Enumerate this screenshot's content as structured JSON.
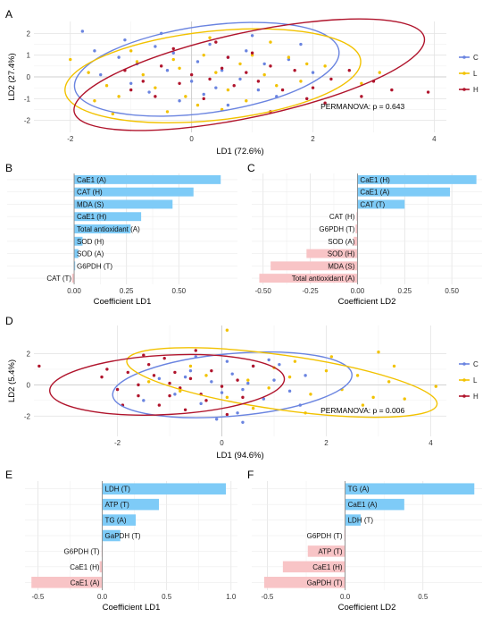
{
  "colors": {
    "C": "#6a84e0",
    "L": "#f2c200",
    "H": "#b0142c",
    "pos": "#7ecbf7",
    "neg": "#f8c4c6"
  },
  "legend": [
    "C",
    "L",
    "H"
  ],
  "chart_data": [
    {
      "id": "A",
      "type": "scatter",
      "xlabel": "LD1 (72.6%)",
      "ylabel": "LD2 (27.4%)",
      "xlim": [
        -2.6,
        4.2
      ],
      "ylim": [
        -2.55,
        2.55
      ],
      "xticks": [
        -2,
        0,
        2,
        4
      ],
      "yticks": [
        -2,
        -1,
        0,
        1,
        2
      ],
      "annotation": "PERMANOVA: p = 0.643",
      "ellipses": [
        {
          "group": "C",
          "cx": 0.25,
          "cy": 0.35,
          "rx": 2.2,
          "ry": 2.0,
          "angle": -8
        },
        {
          "group": "L",
          "cx": 0.35,
          "cy": 0.05,
          "rx": 2.45,
          "ry": 2.05,
          "angle": -6
        },
        {
          "group": "H",
          "cx": 0.95,
          "cy": 0.1,
          "rx": 2.95,
          "ry": 1.95,
          "angle": -12
        }
      ],
      "series": [
        {
          "name": "C",
          "points": [
            [
              -1.8,
              2.1
            ],
            [
              -1.6,
              1.2
            ],
            [
              -1.2,
              0.9
            ],
            [
              -0.9,
              0.6
            ],
            [
              -0.6,
              1.4
            ],
            [
              -0.3,
              1.1
            ],
            [
              0.1,
              0.7
            ],
            [
              0.3,
              1.5
            ],
            [
              0.6,
              0.9
            ],
            [
              0.9,
              1.2
            ],
            [
              1.2,
              0.6
            ],
            [
              1.6,
              0.8
            ],
            [
              2.0,
              0.2
            ],
            [
              -1.5,
              0.1
            ],
            [
              -1.0,
              -0.3
            ],
            [
              -0.7,
              -0.7
            ],
            [
              -0.4,
              0.3
            ],
            [
              0.0,
              -0.2
            ],
            [
              0.4,
              -0.5
            ],
            [
              0.8,
              -0.1
            ],
            [
              1.1,
              -0.6
            ],
            [
              1.4,
              -0.9
            ],
            [
              -0.2,
              -1.1
            ],
            [
              0.2,
              -0.8
            ],
            [
              0.6,
              -1.3
            ],
            [
              -1.1,
              1.7
            ],
            [
              1.0,
              1.9
            ],
            [
              -0.5,
              2.0
            ],
            [
              0.5,
              0.3
            ],
            [
              1.8,
              1.5
            ]
          ]
        },
        {
          "name": "L",
          "points": [
            [
              -2.0,
              0.8
            ],
            [
              -1.7,
              0.2
            ],
            [
              -1.4,
              -0.4
            ],
            [
              -1.6,
              -1.1
            ],
            [
              -1.0,
              1.2
            ],
            [
              -0.8,
              0.1
            ],
            [
              -0.6,
              -0.5
            ],
            [
              -0.3,
              0.8
            ],
            [
              -0.1,
              -0.9
            ],
            [
              0.2,
              1.0
            ],
            [
              0.4,
              0.2
            ],
            [
              0.6,
              -0.6
            ],
            [
              0.8,
              0.6
            ],
            [
              1.0,
              1.0
            ],
            [
              1.2,
              0.1
            ],
            [
              1.4,
              -0.4
            ],
            [
              1.6,
              0.9
            ],
            [
              1.8,
              -0.2
            ],
            [
              2.2,
              0.5
            ],
            [
              2.8,
              -0.3
            ],
            [
              -1.2,
              -0.9
            ],
            [
              -0.4,
              -1.6
            ],
            [
              0.1,
              -1.3
            ],
            [
              0.5,
              -1.5
            ],
            [
              0.9,
              -1.1
            ],
            [
              -0.9,
              0.7
            ],
            [
              0.3,
              1.8
            ],
            [
              1.3,
              1.6
            ],
            [
              -1.3,
              -1.7
            ],
            [
              1.9,
              0.6
            ],
            [
              3.1,
              0.2
            ],
            [
              -0.2,
              0.4
            ]
          ]
        },
        {
          "name": "H",
          "points": [
            [
              -1.1,
              0.3
            ],
            [
              -0.8,
              -0.2
            ],
            [
              -0.5,
              0.5
            ],
            [
              -0.2,
              -0.3
            ],
            [
              0.0,
              0.1
            ],
            [
              0.3,
              -0.1
            ],
            [
              0.5,
              0.4
            ],
            [
              0.7,
              -0.4
            ],
            [
              0.9,
              0.2
            ],
            [
              1.1,
              -0.2
            ],
            [
              1.3,
              0.5
            ],
            [
              1.5,
              -0.6
            ],
            [
              1.7,
              0.3
            ],
            [
              2.0,
              -0.5
            ],
            [
              2.3,
              -0.1
            ],
            [
              2.6,
              0.3
            ],
            [
              3.0,
              -0.2
            ],
            [
              3.3,
              -0.6
            ],
            [
              3.9,
              -0.7
            ],
            [
              -0.6,
              -0.9
            ],
            [
              0.2,
              -1.0
            ],
            [
              0.6,
              0.9
            ],
            [
              1.0,
              1.1
            ],
            [
              1.9,
              -1.0
            ],
            [
              -0.3,
              1.3
            ],
            [
              2.2,
              -1.2
            ],
            [
              1.3,
              -1.6
            ],
            [
              -1.0,
              -0.6
            ],
            [
              0.4,
              1.6
            ],
            [
              2.8,
              -0.9
            ]
          ]
        }
      ]
    },
    {
      "id": "B",
      "type": "bar",
      "orientation": "horizontal",
      "xlabel": "Coefficient LD1",
      "xlim": [
        -0.32,
        0.78
      ],
      "xticks": [
        0,
        0.25,
        0.5
      ],
      "xtick_labels": [
        "0.00",
        "0.25",
        "0.50"
      ],
      "categories": [
        "CaE1 (A)",
        "CAT (H)",
        "MDA (S)",
        "CaE1 (H)",
        "Total antioxidant (A)",
        "SOD (H)",
        "SOD (A)",
        "G6PDH (T)",
        "CAT (T)"
      ],
      "values": [
        0.7,
        0.57,
        0.47,
        0.32,
        0.27,
        0.04,
        0.02,
        0.005,
        -0.01
      ]
    },
    {
      "id": "C",
      "type": "bar",
      "orientation": "horizontal",
      "xlabel": "Coefficient LD2",
      "xlim": [
        -0.56,
        0.66
      ],
      "xticks": [
        -0.5,
        -0.25,
        0,
        0.25,
        0.5
      ],
      "xtick_labels": [
        "-0.50",
        "-0.25",
        "0.00",
        "0.25",
        "0.50"
      ],
      "categories": [
        "CaE1 (H)",
        "CaE1 (A)",
        "CAT (T)",
        "CAT (H)",
        "G6PDH (T)",
        "SOD (A)",
        "SOD (H)",
        "MDA (S)",
        "Total antioxidant (A)"
      ],
      "values": [
        0.63,
        0.49,
        0.25,
        -0.005,
        -0.01,
        -0.02,
        -0.27,
        -0.46,
        -0.52
      ]
    },
    {
      "id": "D",
      "type": "scatter",
      "xlabel": "LD1 (94.6%)",
      "ylabel": "LD2 (5.4%)",
      "xlim": [
        -3.6,
        4.3
      ],
      "ylim": [
        -3.3,
        3.8
      ],
      "xticks": [
        -2,
        0,
        2,
        4
      ],
      "yticks": [
        -2,
        0,
        2
      ],
      "annotation": "PERMANOVA: p = 0.006",
      "ellipses": [
        {
          "group": "C",
          "cx": 0.2,
          "cy": 0.0,
          "rx": 2.3,
          "ry": 2.0,
          "angle": -5
        },
        {
          "group": "L",
          "cx": 1.15,
          "cy": 0.15,
          "rx": 3.0,
          "ry": 1.75,
          "angle": 8
        },
        {
          "group": "H",
          "cx": -1.05,
          "cy": 0.0,
          "rx": 2.25,
          "ry": 1.9,
          "angle": -3
        }
      ],
      "series": [
        {
          "name": "C",
          "points": [
            [
              -1.2,
              0.4
            ],
            [
              -0.9,
              -0.6
            ],
            [
              -0.6,
              0.9
            ],
            [
              -0.4,
              -1.2
            ],
            [
              -0.2,
              0.2
            ],
            [
              0.0,
              -0.5
            ],
            [
              0.2,
              0.7
            ],
            [
              0.4,
              -0.3
            ],
            [
              0.6,
              1.2
            ],
            [
              0.8,
              -0.9
            ],
            [
              1.0,
              0.3
            ],
            [
              1.3,
              -0.4
            ],
            [
              1.6,
              0.6
            ],
            [
              -0.5,
              1.8
            ],
            [
              0.3,
              -1.8
            ],
            [
              0.9,
              1.6
            ],
            [
              -0.1,
              -2.2
            ],
            [
              0.4,
              -2.4
            ],
            [
              1.5,
              -1.3
            ],
            [
              -1.5,
              -1.0
            ],
            [
              0.5,
              0.1
            ],
            [
              -0.7,
              0.5
            ],
            [
              1.1,
              1.3
            ],
            [
              0.1,
              1.5
            ]
          ]
        },
        {
          "name": "L",
          "points": [
            [
              -1.4,
              0.2
            ],
            [
              -0.8,
              -0.4
            ],
            [
              -0.3,
              0.6
            ],
            [
              0.1,
              -0.8
            ],
            [
              0.5,
              0.3
            ],
            [
              0.9,
              -0.2
            ],
            [
              1.3,
              0.5
            ],
            [
              1.7,
              -0.6
            ],
            [
              2.0,
              0.9
            ],
            [
              2.3,
              -0.3
            ],
            [
              2.6,
              0.6
            ],
            [
              2.9,
              -0.8
            ],
            [
              3.2,
              0.2
            ],
            [
              3.5,
              -0.9
            ],
            [
              3.3,
              1.2
            ],
            [
              2.1,
              1.8
            ],
            [
              1.0,
              1.1
            ],
            [
              0.1,
              3.5
            ],
            [
              0.6,
              -1.5
            ],
            [
              1.6,
              -1.8
            ],
            [
              2.7,
              -1.3
            ],
            [
              3.0,
              2.1
            ],
            [
              -0.6,
              1.2
            ],
            [
              1.4,
              1.5
            ],
            [
              4.1,
              -0.1
            ]
          ]
        },
        {
          "name": "H",
          "points": [
            [
              -3.5,
              1.2
            ],
            [
              -2.3,
              0.5
            ],
            [
              -2.0,
              -0.3
            ],
            [
              -1.8,
              0.8
            ],
            [
              -1.6,
              -0.7
            ],
            [
              -1.4,
              1.3
            ],
            [
              -1.2,
              -1.3
            ],
            [
              -1.0,
              0.1
            ],
            [
              -0.8,
              -0.2
            ],
            [
              -0.6,
              0.4
            ],
            [
              -0.4,
              -0.6
            ],
            [
              -0.2,
              0.9
            ],
            [
              0.0,
              -0.1
            ],
            [
              -1.1,
              1.7
            ],
            [
              -0.7,
              -1.6
            ],
            [
              -1.9,
              -1.3
            ],
            [
              -0.5,
              2.2
            ],
            [
              -1.6,
              0.0
            ],
            [
              -0.3,
              -1.0
            ],
            [
              -1.3,
              0.6
            ],
            [
              0.3,
              0.3
            ],
            [
              0.6,
              1.2
            ],
            [
              -2.2,
              1.0
            ],
            [
              -0.9,
              0.8
            ],
            [
              0.1,
              -1.9
            ],
            [
              -1.5,
              1.9
            ],
            [
              0.4,
              -0.8
            ],
            [
              -1.0,
              -0.7
            ]
          ]
        }
      ]
    },
    {
      "id": "E",
      "type": "bar",
      "orientation": "horizontal",
      "xlabel": "Coefficient LD1",
      "xlim": [
        -0.6,
        1.05
      ],
      "xticks": [
        -0.5,
        0,
        0.5,
        1.0
      ],
      "xtick_labels": [
        "-0.5",
        "0.0",
        "0.5",
        "1.0"
      ],
      "categories": [
        "LDH (T)",
        "ATP (T)",
        "TG (A)",
        "GaPDH (T)",
        "G6PDH (T)",
        "CaE1 (H)",
        "CaE1 (A)"
      ],
      "values": [
        0.96,
        0.44,
        0.26,
        0.14,
        -0.005,
        -0.02,
        -0.55
      ]
    },
    {
      "id": "F",
      "type": "bar",
      "orientation": "horizontal",
      "xlabel": "Coefficient LD2",
      "xlim": [
        -0.6,
        0.88
      ],
      "xticks": [
        -0.5,
        0,
        0.5
      ],
      "xtick_labels": [
        "-0.5",
        "0.0",
        "0.5"
      ],
      "categories": [
        "TG (A)",
        "CaE1 (A)",
        "LDH (T)",
        "G6PDH (T)",
        "ATP (T)",
        "CaE1 (H)",
        "GaPDH (T)"
      ],
      "values": [
        0.83,
        0.38,
        0.1,
        -0.005,
        -0.24,
        -0.4,
        -0.52
      ]
    }
  ]
}
